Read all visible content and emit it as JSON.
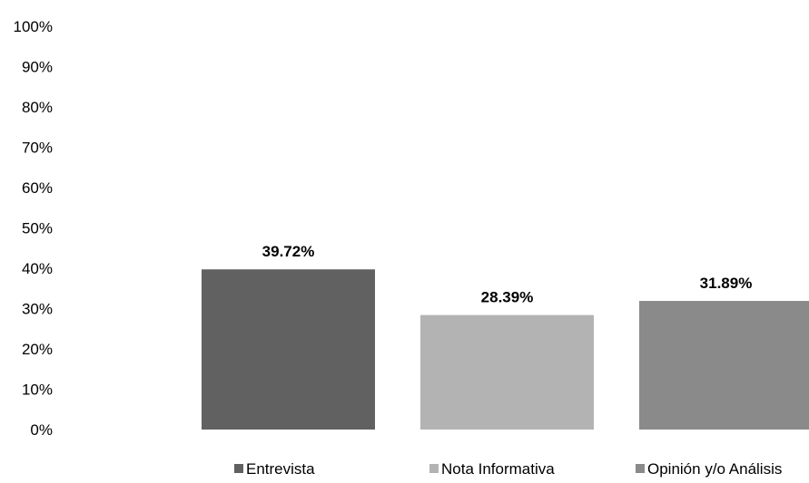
{
  "chart_data": {
    "type": "bar",
    "categories": [
      "Entrevista",
      "Nota Informativa",
      "Opinión y/o Análisis"
    ],
    "values": [
      39.72,
      28.39,
      31.89
    ],
    "data_labels": [
      "39.72%",
      "28.39%",
      "31.89%"
    ],
    "colors": [
      "#616161",
      "#b3b3b3",
      "#8a8a8a"
    ],
    "title": "",
    "xlabel": "",
    "ylabel": "",
    "ylim": [
      0,
      100
    ],
    "y_ticks": [
      0,
      10,
      20,
      30,
      40,
      50,
      60,
      70,
      80,
      90,
      100
    ],
    "y_tick_labels": [
      "0%",
      "10%",
      "20%",
      "30%",
      "40%",
      "50%",
      "60%",
      "70%",
      "80%",
      "90%",
      "100%"
    ],
    "grid": false,
    "legend": {
      "placement": "bottom",
      "entries": [
        "Entrevista",
        "Nota Informativa",
        "Opinión y/o Análisis"
      ]
    }
  }
}
